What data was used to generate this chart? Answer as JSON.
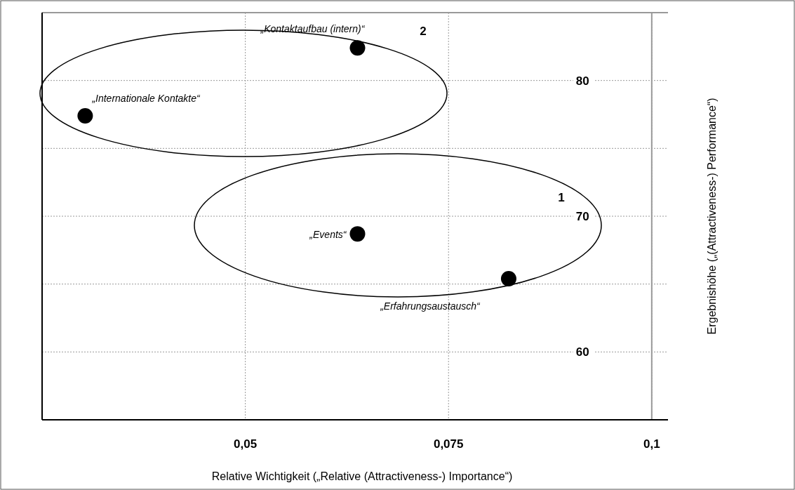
{
  "chart_data": {
    "type": "scatter",
    "xlabel": "Relative Wichtigkeit („Relative (Attractiveness-) Importance“)",
    "ylabel": "Ergebnishöhe („(Attractiveness-) Performance“)",
    "xlim": [
      0.025,
      0.102
    ],
    "ylim": [
      55,
      85
    ],
    "xticks": [
      {
        "value": 0.05,
        "label": "0,05"
      },
      {
        "value": 0.075,
        "label": "0,075"
      },
      {
        "value": 0.1,
        "label": "0,1"
      }
    ],
    "yticks": [
      60,
      {
        "value": 65,
        "label": null
      },
      70,
      {
        "value": 75,
        "label": null
      },
      80
    ],
    "grid": true,
    "marker": "circle",
    "ref_lines": [
      {
        "axis": "x",
        "value": 0.1,
        "color": "#999999",
        "line_style": "solid"
      }
    ],
    "annotations": [
      "1",
      "2"
    ],
    "series": [
      {
        "name": "„Kontaktaufbau (intern)“",
        "color": "#000000",
        "x": [
          0.0638
        ],
        "values": [
          82.4
        ]
      },
      {
        "name": "„Internationale Kontakte“",
        "color": "#000000",
        "x": [
          0.0303
        ],
        "values": [
          77.4
        ]
      },
      {
        "name": "„Events“",
        "color": "#000000",
        "x": [
          0.0638
        ],
        "values": [
          68.7
        ]
      },
      {
        "name": "„Erfahrungsaustausch“",
        "color": "#000000",
        "x": [
          0.0824
        ],
        "values": [
          65.4
        ]
      }
    ]
  }
}
